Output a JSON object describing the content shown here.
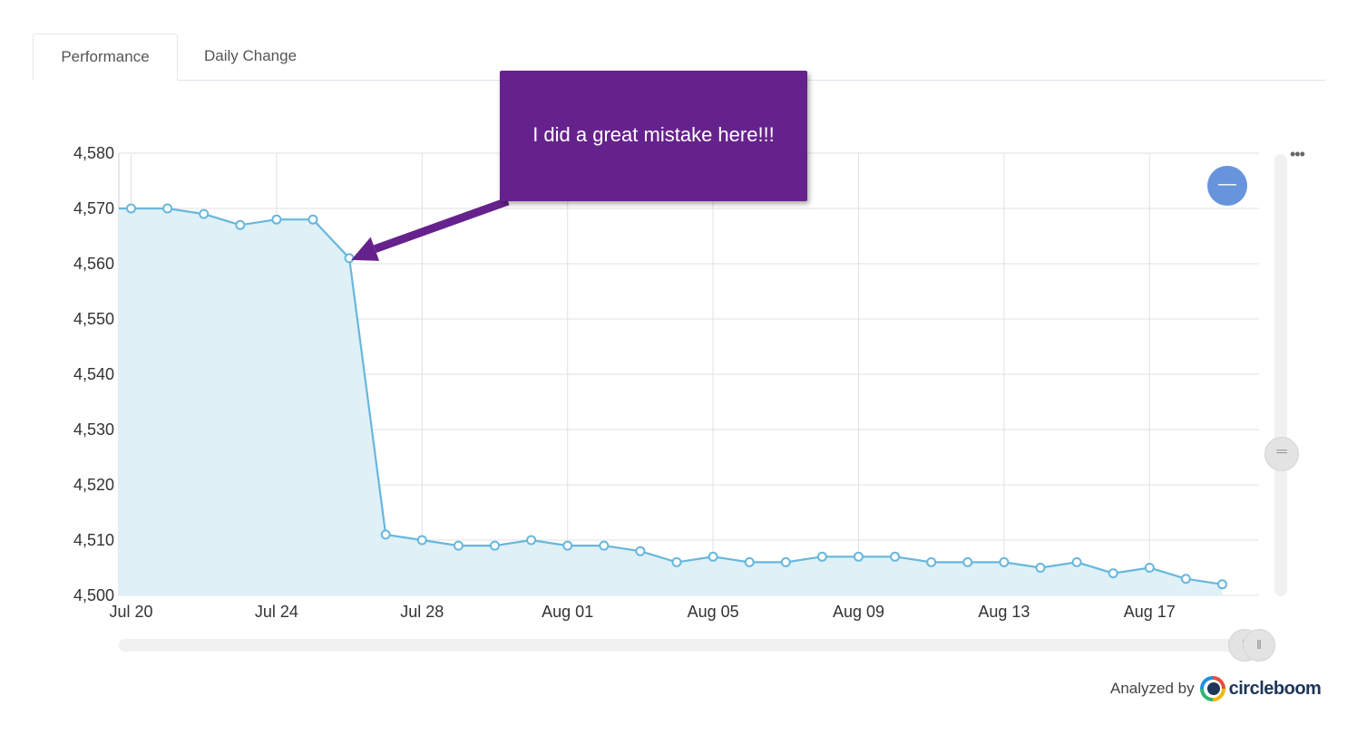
{
  "tabs": [
    {
      "label": "Performance",
      "active": true
    },
    {
      "label": "Daily Change",
      "active": false
    }
  ],
  "annotation": {
    "text": "I did a great mistake here!!!",
    "color": "#66228c",
    "points_to": "Jul 26"
  },
  "zoom_button": {
    "label": "—"
  },
  "menu": {
    "label": "•••"
  },
  "scroll_grips": {
    "vertical": "═",
    "horizontal_start": "‖",
    "horizontal_end": "‖"
  },
  "credit": {
    "prefix": "Analyzed by",
    "brand": "circleboom"
  },
  "colors": {
    "line": "#67b7dc",
    "fill": "#dff0f7",
    "accent": "#6794dc"
  },
  "chart_data": {
    "type": "area",
    "title": "",
    "xlabel": "",
    "ylabel": "",
    "ylim": [
      4500,
      4580
    ],
    "yticks": [
      "4,500",
      "4,510",
      "4,520",
      "4,530",
      "4,540",
      "4,550",
      "4,560",
      "4,570",
      "4,580"
    ],
    "xticks": [
      "Jul 20",
      "Jul 24",
      "Jul 28",
      "Aug 01",
      "Aug 05",
      "Aug 09",
      "Aug 13",
      "Aug 17"
    ],
    "grid": true,
    "x": [
      "Jul 20",
      "Jul 21",
      "Jul 22",
      "Jul 23",
      "Jul 24",
      "Jul 25",
      "Jul 26",
      "Jul 27",
      "Jul 28",
      "Jul 29",
      "Jul 30",
      "Jul 31",
      "Aug 01",
      "Aug 02",
      "Aug 03",
      "Aug 04",
      "Aug 05",
      "Aug 06",
      "Aug 07",
      "Aug 08",
      "Aug 09",
      "Aug 10",
      "Aug 11",
      "Aug 12",
      "Aug 13",
      "Aug 14",
      "Aug 15",
      "Aug 16",
      "Aug 17",
      "Aug 18",
      "Aug 19"
    ],
    "values": [
      4570,
      4570,
      4569,
      4567,
      4568,
      4568,
      4561,
      4511,
      4510,
      4509,
      4509,
      4510,
      4509,
      4509,
      4508,
      4506,
      4507,
      4506,
      4506,
      4507,
      4507,
      4507,
      4506,
      4506,
      4506,
      4505,
      4506,
      4504,
      4505,
      4503,
      4502
    ]
  }
}
